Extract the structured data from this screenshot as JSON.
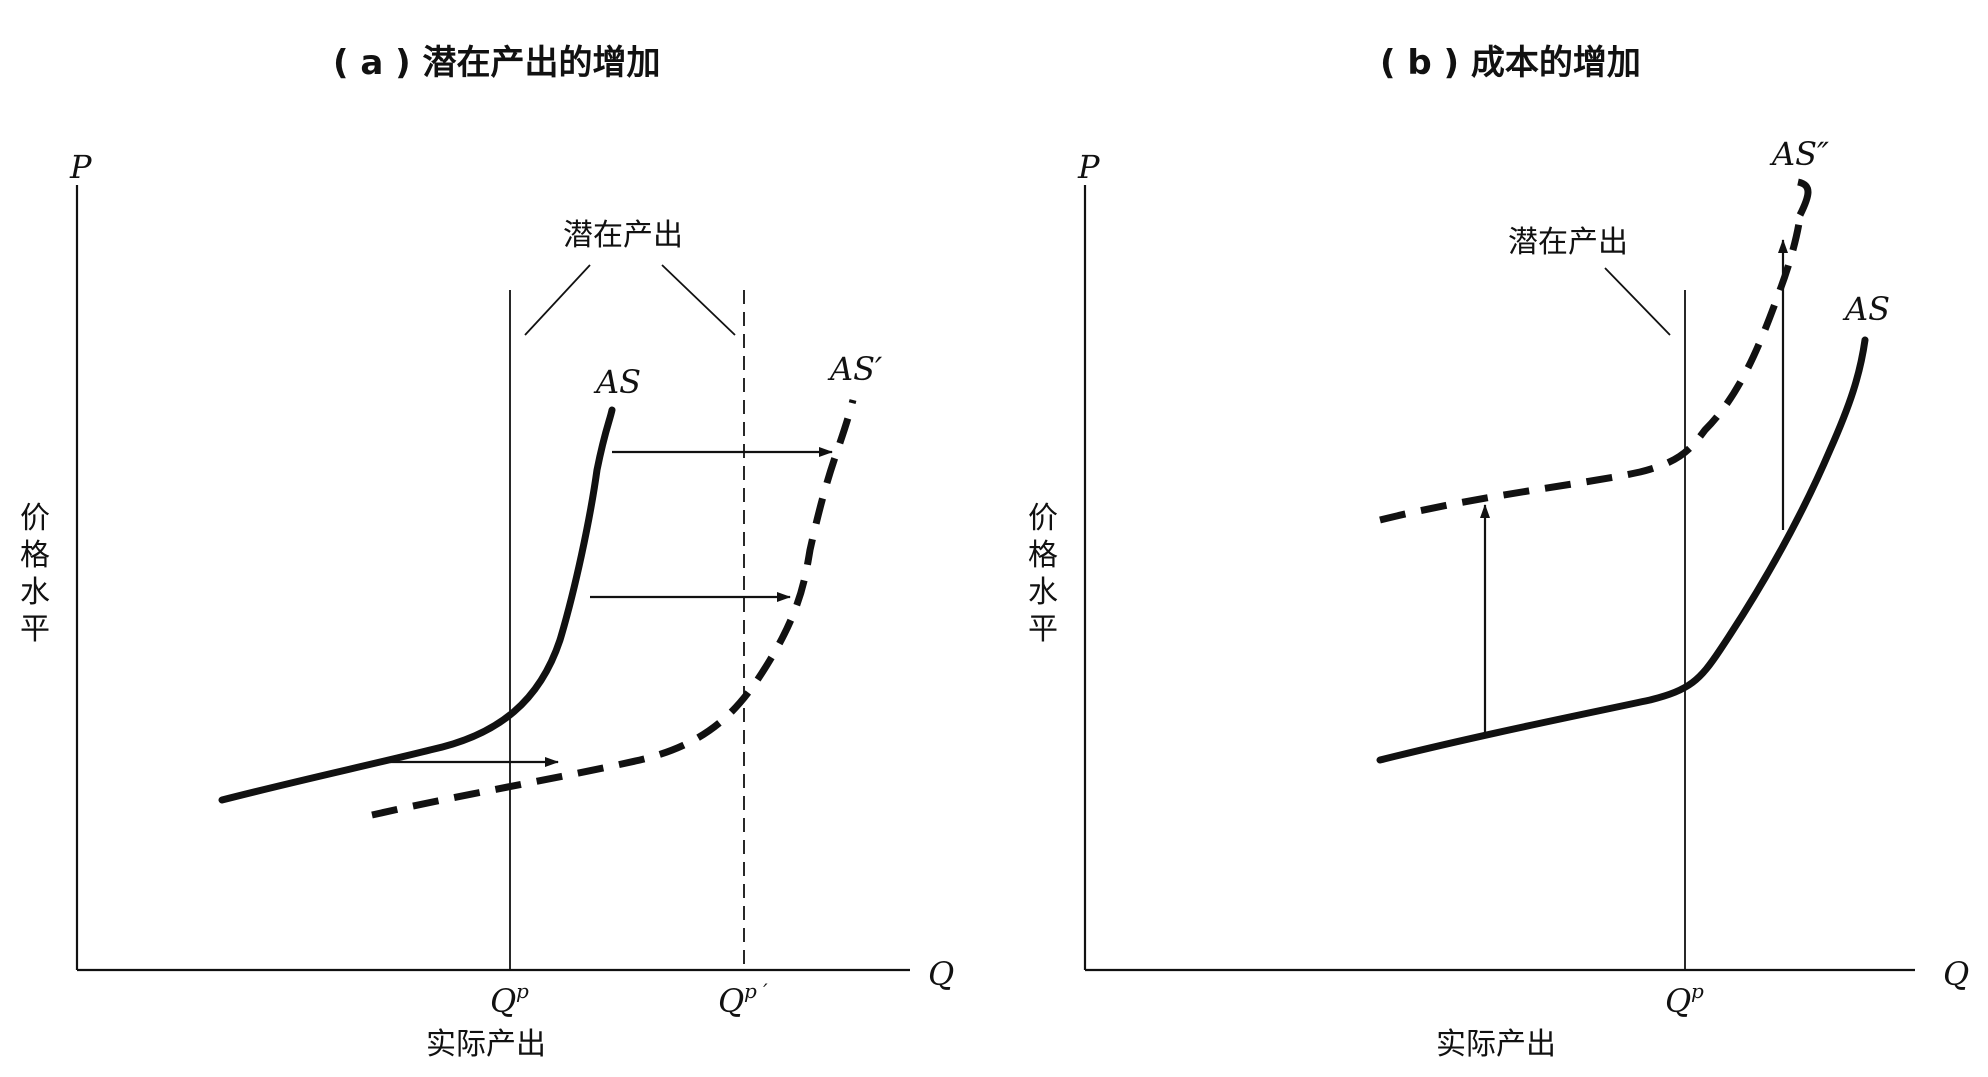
{
  "panel_a": {
    "title": "( a ) 潜在产出的增加",
    "y_axis": "P",
    "x_axis": "Q",
    "y_label_chars": [
      "价",
      "格",
      "水",
      "平"
    ],
    "x_label": "实际产出",
    "potential_label": "潜在产出",
    "qp": "Q",
    "qp_sup": "p",
    "qp2": "Q",
    "qp2_sup": "p ′",
    "curve_as": "AS",
    "curve_as_prime": "AS′"
  },
  "panel_b": {
    "title": "( b ) 成本的增加",
    "y_axis": "P",
    "x_axis": "Q",
    "y_label_chars": [
      "价",
      "格",
      "水",
      "平"
    ],
    "x_label": "实际产出",
    "potential_label": "潜在产出",
    "qp": "Q",
    "qp_sup": "p",
    "curve_as": "AS",
    "curve_as_double_prime": "AS″"
  }
}
